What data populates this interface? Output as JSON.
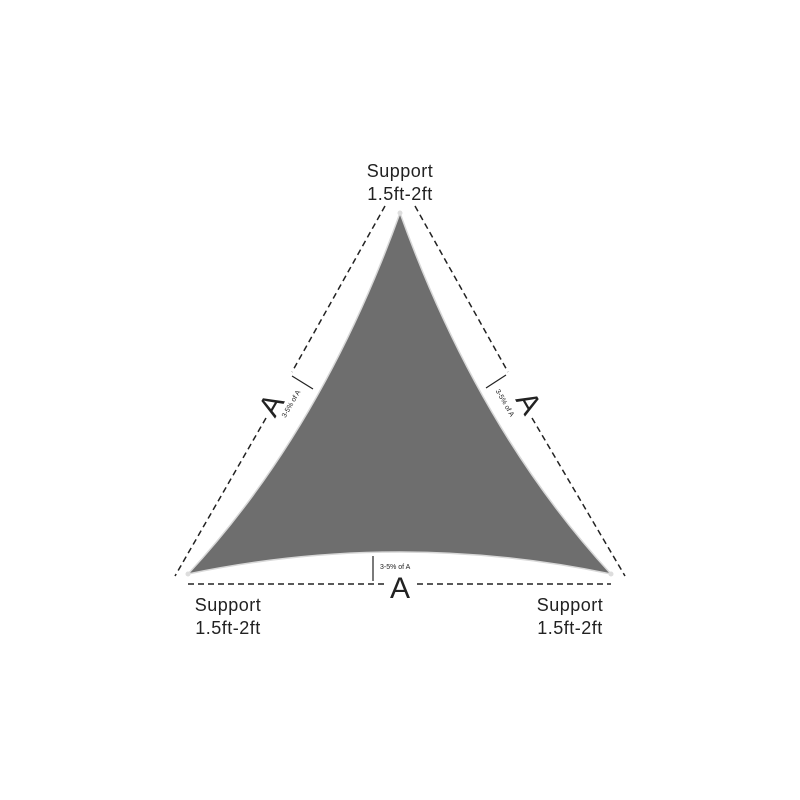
{
  "supports": {
    "top": {
      "line1": "Support",
      "line2": "1.5ft-2ft"
    },
    "bottom_left": {
      "line1": "Support",
      "line2": "1.5ft-2ft"
    },
    "bottom_right": {
      "line1": "Support",
      "line2": "1.5ft-2ft"
    }
  },
  "sides": {
    "left": {
      "label": "A",
      "sag": "3-5% of A"
    },
    "right": {
      "label": "A",
      "sag": "3-5% of A"
    },
    "bottom": {
      "label": "A",
      "sag": "3-5% of A"
    }
  },
  "colors": {
    "sail": "#6e6e6e",
    "lines": "#222222"
  }
}
